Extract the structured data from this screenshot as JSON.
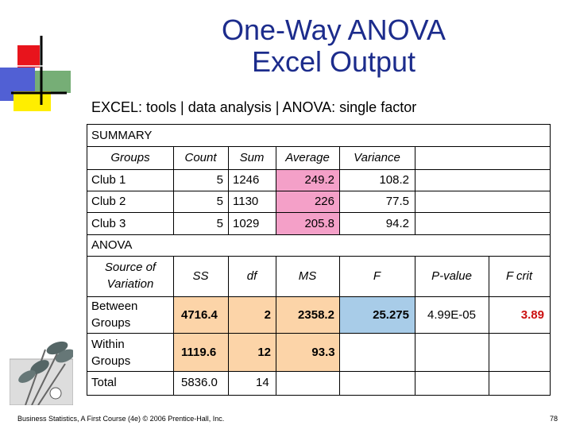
{
  "title": {
    "line1": "One-Way ANOVA",
    "line2": "Excel Output"
  },
  "subtitle": "EXCEL:   tools | data analysis | ANOVA: single factor",
  "summary": {
    "label": "SUMMARY",
    "headers": [
      "Groups",
      "Count",
      "Sum",
      "Average",
      "Variance"
    ],
    "rows": [
      [
        "Club 1",
        "5",
        "1246",
        "249.2",
        "108.2"
      ],
      [
        "Club 2",
        "5",
        "1130",
        "226",
        "77.5"
      ],
      [
        "Club 3",
        "5",
        "1029",
        "205.8",
        "94.2"
      ]
    ]
  },
  "anova": {
    "label": "ANOVA",
    "headers": {
      "source_line1": "Source of",
      "source_line2": "Variation",
      "ss": "SS",
      "df": "df",
      "ms": "MS",
      "f": "F",
      "pvalue": "P-value",
      "fcrit": "F crit"
    },
    "between": {
      "line1": "Between",
      "line2": "Groups",
      "ss": "4716.4",
      "df": "2",
      "ms": "2358.2",
      "f": "25.275",
      "pvalue": "4.99E-05",
      "fcrit": "3.89"
    },
    "within": {
      "line1": "Within",
      "line2": "Groups",
      "ss": "1119.6",
      "df": "12",
      "ms": "93.3"
    },
    "total": {
      "label": "Total",
      "ss": "5836.0",
      "df": "14"
    }
  },
  "footer": "Business Statistics, A First Course (4e) © 2006 Prentice-Hall, Inc.",
  "page_number": "78",
  "icons": {
    "corner_logo": "color-squares-logo",
    "golf_clubs": "golf-clubs-icon"
  },
  "colors": {
    "title": "#1c2c8c",
    "average_highlight": "#f4a0c8",
    "anova_highlight": "#fcd4a8",
    "f_highlight": "#a8cce8",
    "fcrit_text": "#cc1010"
  }
}
